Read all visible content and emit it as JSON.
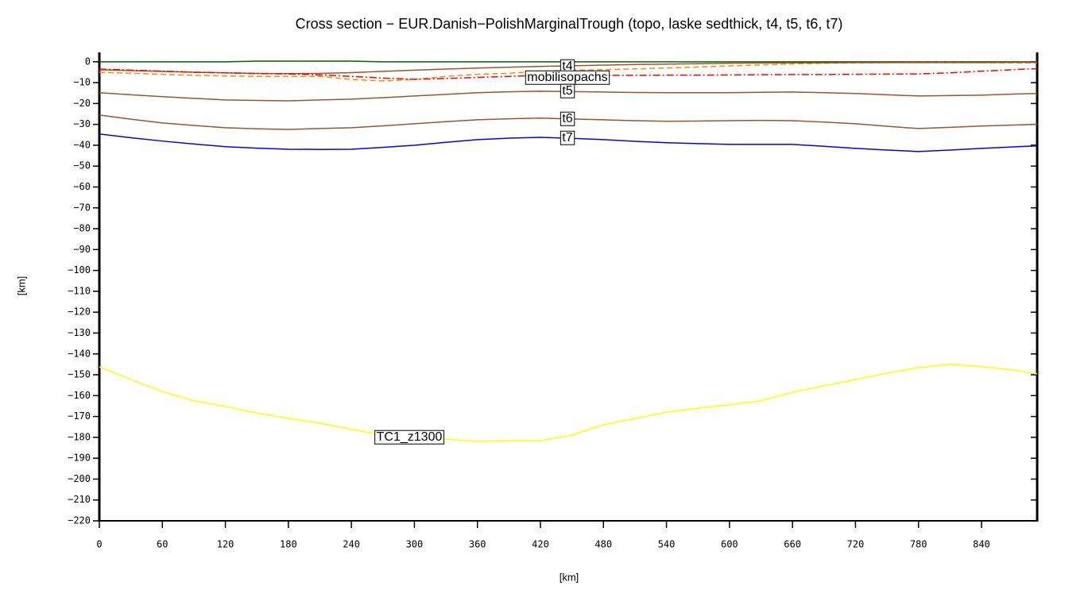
{
  "chart_data": {
    "type": "line",
    "title": "Cross section − EUR.Danish−PolishMarginalTrough (topo, laske sedthick, t4, t5, t6, t7)",
    "xlabel": "[km]",
    "ylabel": "[km]",
    "xlim": [
      0,
      893
    ],
    "ylim": [
      -220,
      4.5
    ],
    "xticks": [
      0,
      60,
      120,
      180,
      240,
      300,
      360,
      420,
      480,
      540,
      600,
      660,
      720,
      780,
      840
    ],
    "yticks": [
      0,
      {
        "value": -10,
        "label": "−10"
      },
      {
        "value": -20,
        "label": "−20"
      },
      {
        "value": -30,
        "label": "−30"
      },
      {
        "value": -40,
        "label": "−40"
      },
      {
        "value": -50,
        "label": "−50"
      },
      {
        "value": -60,
        "label": "−60"
      },
      {
        "value": -70,
        "label": "−70"
      },
      {
        "value": -80,
        "label": "−80"
      },
      {
        "value": -90,
        "label": "−90"
      },
      {
        "value": -100,
        "label": "−100"
      },
      {
        "value": -110,
        "label": "−110"
      },
      {
        "value": -120,
        "label": "−120"
      },
      {
        "value": -130,
        "label": "−130"
      },
      {
        "value": -140,
        "label": "−140"
      },
      {
        "value": -150,
        "label": "−150"
      },
      {
        "value": -160,
        "label": "−160"
      },
      {
        "value": -170,
        "label": "−170"
      },
      {
        "value": -180,
        "label": "−180"
      },
      {
        "value": -190,
        "label": "−190"
      },
      {
        "value": -200,
        "label": "−200"
      },
      {
        "value": -210,
        "label": "−210"
      },
      {
        "value": -220,
        "label": "−220"
      }
    ],
    "grid": false,
    "x": [
      0,
      30,
      60,
      90,
      120,
      150,
      180,
      210,
      240,
      270,
      300,
      330,
      360,
      390,
      420,
      450,
      480,
      510,
      540,
      570,
      600,
      630,
      660,
      690,
      720,
      750,
      780,
      810,
      840,
      870,
      893
    ],
    "series": [
      {
        "color": "#006400",
        "dash": "solid",
        "values": [
          0,
          0,
          0,
          0,
          0,
          0.3,
          0.3,
          0.3,
          0.3,
          0,
          0,
          0,
          0,
          0,
          0,
          0,
          0,
          0,
          0,
          0,
          0,
          0,
          0,
          0,
          0,
          0,
          0,
          0,
          0,
          0,
          0
        ]
      },
      {
        "color": "#ff8c00",
        "dash": "dashed",
        "values": [
          -5,
          -5.5,
          -6,
          -6.5,
          -6.8,
          -7,
          -7,
          -7,
          -8.5,
          -9.2,
          -8.5,
          -7,
          -6,
          -5.5,
          -4.5,
          -4,
          -3.8,
          -3.4,
          -3,
          -2.5,
          -2,
          -1.5,
          -1,
          -0.7,
          -0.5,
          -0.4,
          -0.3,
          -0.3,
          -0.4,
          -0.5,
          -0.5
        ]
      },
      {
        "name": "t4",
        "color": "#a0522d",
        "dash": "solid",
        "values": [
          -3.8,
          -4.2,
          -4.6,
          -5,
          -5.3,
          -5.6,
          -5.7,
          -5.6,
          -5.2,
          -4.6,
          -4,
          -3.5,
          -3,
          -2.6,
          -2.2,
          -1.9,
          -1.6,
          -1.3,
          -1.1,
          -0.9,
          -0.7,
          -0.6,
          -0.5,
          -0.5,
          -0.4,
          -0.4,
          -0.4,
          -0.4,
          -0.4,
          -0.3,
          -0.3
        ]
      },
      {
        "name": "mobilisopachs",
        "color": "#ff0000",
        "dash": "dashdot",
        "values": [
          -3.5,
          -4,
          -4.5,
          -5,
          -5.3,
          -5.6,
          -5.8,
          -6.3,
          -7,
          -7.8,
          -8.4,
          -8,
          -7.5,
          -7,
          -6.5,
          -6.5,
          -6.5,
          -6.5,
          -6.4,
          -6.4,
          -6.3,
          -6.2,
          -6.1,
          -6.1,
          -6,
          -5.9,
          -5.8,
          -5.3,
          -4.5,
          -3.8,
          -3.3
        ]
      },
      {
        "name": "t5",
        "color": "#a0522d",
        "dash": "solid",
        "values": [
          -14.8,
          -15.8,
          -16.7,
          -17.5,
          -18.3,
          -18.5,
          -18.7,
          -18.3,
          -17.9,
          -17.2,
          -16.4,
          -15.6,
          -14.8,
          -14.4,
          -14.1,
          -14.3,
          -14.5,
          -14.7,
          -14.8,
          -14.8,
          -14.8,
          -14.6,
          -14.5,
          -14.8,
          -15.2,
          -15.8,
          -16.4,
          -16.2,
          -16,
          -15.5,
          -15.2
        ]
      },
      {
        "name": "t6",
        "color": "#a0522d",
        "dash": "solid",
        "values": [
          -25.5,
          -27.5,
          -29.3,
          -30.5,
          -31.6,
          -32.1,
          -32.4,
          -32,
          -31.6,
          -30.7,
          -29.7,
          -28.7,
          -27.8,
          -27.3,
          -27,
          -27.4,
          -27.8,
          -28.2,
          -28.5,
          -28.4,
          -28.2,
          -28.1,
          -28.2,
          -28.9,
          -29.7,
          -30.9,
          -32,
          -31.4,
          -30.8,
          -30.3,
          -30
        ]
      },
      {
        "name": "t7",
        "color": "#0000ff",
        "dash": "solid",
        "values": [
          -34.6,
          -36.4,
          -38,
          -39.4,
          -40.7,
          -41.4,
          -41.9,
          -42,
          -41.9,
          -41,
          -40,
          -38.6,
          -37.3,
          -36.6,
          -36.2,
          -36.7,
          -37.3,
          -38.1,
          -38.8,
          -39.2,
          -39.6,
          -39.6,
          -39.6,
          -40.5,
          -41.5,
          -42.3,
          -43,
          -42.3,
          -41.5,
          -40.8,
          -40.3
        ]
      },
      {
        "name": "TC1_z1300",
        "color": "#ffff00",
        "dash": "solid",
        "values": [
          -146.2,
          -152.3,
          -158,
          -162.5,
          -165.2,
          -168.3,
          -170.9,
          -173.2,
          -176.2,
          -178.9,
          -180,
          -180.8,
          -182,
          -181.6,
          -181.6,
          -178.9,
          -174,
          -170.9,
          -167.9,
          -166,
          -164.4,
          -162.5,
          -158.4,
          -155.3,
          -152.3,
          -149.2,
          -146.6,
          -145,
          -146.2,
          -147.7,
          -149.6
        ]
      }
    ]
  }
}
